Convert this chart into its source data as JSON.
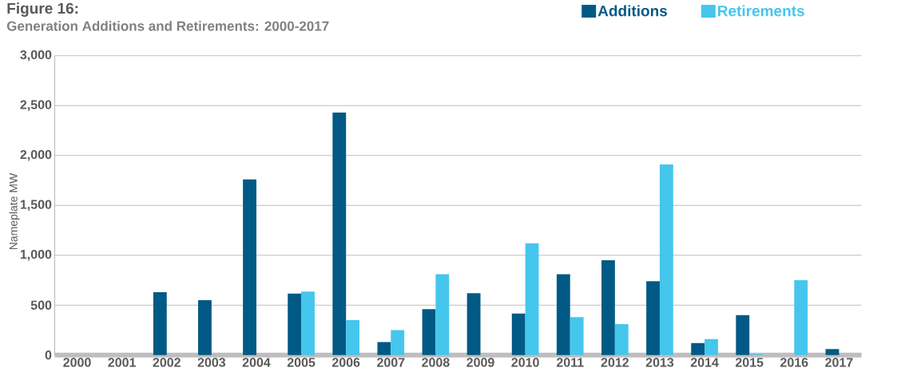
{
  "chart_data": {
    "type": "bar",
    "title": "Figure 16:",
    "subtitle": "Generation Additions and Retirements: 2000-2017",
    "ylabel": "Nameplate MW",
    "categories": [
      "2000",
      "2001",
      "2002",
      "2003",
      "2004",
      "2005",
      "2006",
      "2007",
      "2008",
      "2009",
      "2010",
      "2011",
      "2012",
      "2013",
      "2014",
      "2015",
      "2016",
      "2017"
    ],
    "series": [
      {
        "name": "Additions",
        "color": "#005a85",
        "values": [
          0,
          0,
          630,
          550,
          1760,
          615,
          2430,
          130,
          460,
          620,
          415,
          810,
          950,
          740,
          120,
          400,
          0,
          60
        ]
      },
      {
        "name": "Retirements",
        "color": "#45c6ec",
        "values": [
          0,
          0,
          0,
          0,
          0,
          635,
          350,
          250,
          810,
          0,
          1120,
          380,
          310,
          1910,
          160,
          10,
          750,
          0
        ]
      }
    ],
    "ylim": [
      0,
      3000
    ],
    "yticks": [
      0,
      {
        "value": 500,
        "label": "500"
      },
      {
        "value": 1000,
        "label": "1,000"
      },
      {
        "value": 1500,
        "label": "1,500"
      },
      {
        "value": 2000,
        "label": "2,000"
      },
      {
        "value": 2500,
        "label": "2,500"
      },
      {
        "value": 3000,
        "label": "3,000"
      }
    ],
    "grid": "y",
    "legend": "top right"
  }
}
